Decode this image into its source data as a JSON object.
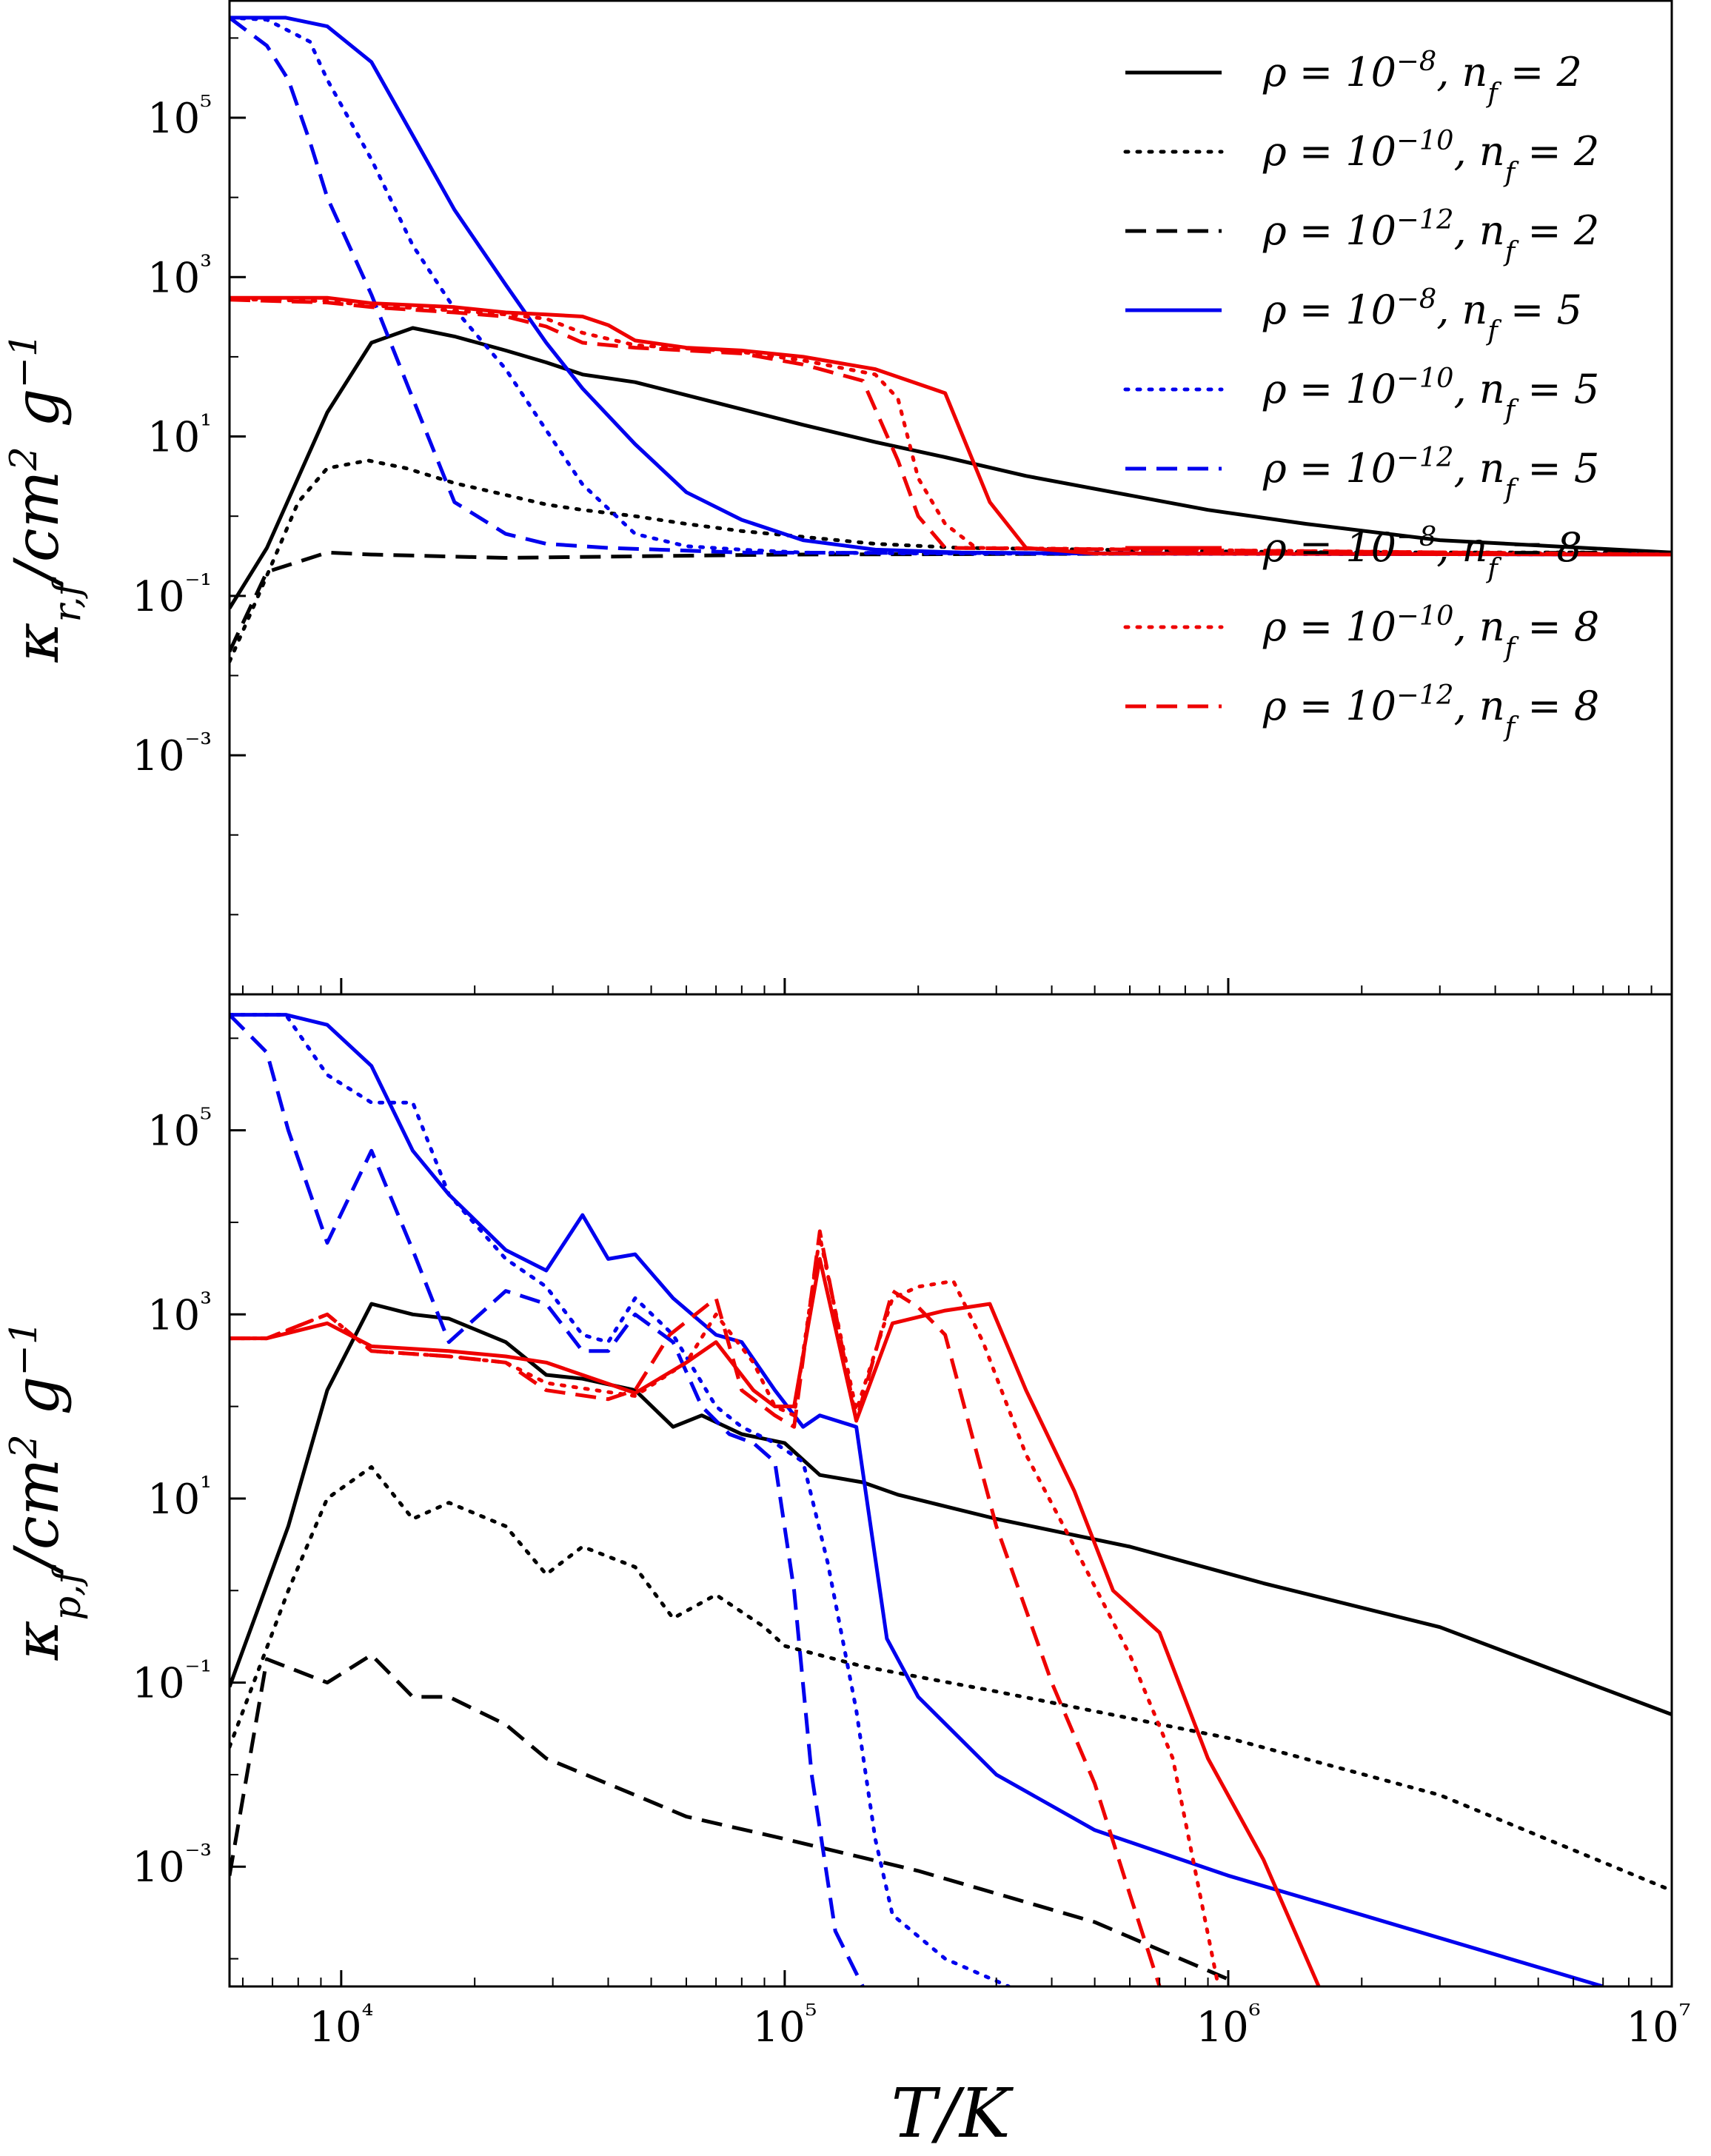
{
  "chart_data": [
    {
      "type": "line",
      "panel": "top",
      "ylabel": "κr,f / cm² g⁻¹",
      "xlabel": "",
      "xscale": "log",
      "yscale": "log",
      "xlim": [
        5600,
        10000000
      ],
      "ylim": [
        1e-06,
        3000000
      ],
      "x_ticks": [
        10000,
        100000,
        1000000,
        10000000
      ],
      "x_tick_labels": [
        "10⁴",
        "10⁵",
        "10⁶",
        "10⁷"
      ],
      "y_ticks": [
        0.001,
        0.1,
        10,
        1000,
        100000
      ],
      "y_tick_labels": [
        "10⁻³",
        "10⁻¹",
        "10¹",
        "10³",
        "10⁵"
      ],
      "grid": false,
      "legend_position": "top-right",
      "series": [
        {
          "name": "ρ = 10⁻⁸, n_f = 2",
          "color": "#000000",
          "dash": "solid",
          "x": [
            5600,
            6800,
            9300,
            11700,
            14500,
            18000,
            23500,
            29000,
            35000,
            46000,
            60000,
            80000,
            110000,
            160000,
            230000,
            350000,
            550000,
            900000,
            1500000,
            3000000,
            10000000
          ],
          "y": [
            0.07,
            0.4,
            20,
            150,
            230,
            180,
            120,
            85,
            60,
            48,
            33,
            22,
            14,
            8.5,
            5.5,
            3.2,
            2,
            1.2,
            0.8,
            0.5,
            0.35
          ]
        },
        {
          "name": "ρ = 10⁻¹⁰, n_f = 2",
          "color": "#000000",
          "dash": "dotted",
          "x": [
            5600,
            6500,
            8000,
            9300,
            11500,
            14000,
            18000,
            23000,
            29000,
            35000,
            46000,
            60000,
            80000,
            110000,
            160000,
            250000,
            500000,
            1000000,
            2000000,
            10000000
          ],
          "y": [
            0.015,
            0.1,
            1.5,
            4,
            5,
            4,
            2.6,
            1.9,
            1.4,
            1.2,
            1.0,
            0.8,
            0.65,
            0.55,
            0.45,
            0.4,
            0.38,
            0.36,
            0.35,
            0.35
          ]
        },
        {
          "name": "ρ = 10⁻¹², n_f = 2",
          "color": "#000000",
          "dash": "dashed",
          "x": [
            5600,
            6800,
            9300,
            11700,
            23500,
            100000,
            1000000,
            10000000
          ],
          "y": [
            0.02,
            0.2,
            0.35,
            0.33,
            0.3,
            0.33,
            0.34,
            0.35
          ]
        },
        {
          "name": "ρ = 10⁻⁸, n_f = 5",
          "color": "#0000ee",
          "dash": "solid",
          "x": [
            5600,
            7500,
            9300,
            11700,
            14500,
            18000,
            23500,
            29000,
            35000,
            46000,
            60000,
            80000,
            110000,
            160000,
            250000,
            500000,
            10000000
          ],
          "y": [
            1800000,
            1800000,
            1400000,
            500000,
            60000,
            7000,
            800,
            150,
            40,
            8,
            2,
            0.9,
            0.5,
            0.38,
            0.35,
            0.34,
            0.33
          ]
        },
        {
          "name": "ρ = 10⁻¹⁰, n_f = 5",
          "color": "#0000ee",
          "dash": "dotted",
          "x": [
            5600,
            6800,
            8500,
            9300,
            11700,
            14500,
            18000,
            23500,
            29000,
            35000,
            46000,
            60000,
            80000,
            110000,
            200000,
            10000000
          ],
          "y": [
            1800000,
            1700000,
            900000,
            300000,
            30000,
            2500,
            400,
            70,
            12,
            2.5,
            0.6,
            0.42,
            0.38,
            0.35,
            0.34,
            0.33
          ]
        },
        {
          "name": "ρ = 10⁻¹², n_f = 5",
          "color": "#0000ee",
          "dash": "dashed",
          "x": [
            5600,
            6800,
            7600,
            8500,
            9300,
            11700,
            14500,
            18000,
            23500,
            29000,
            40000,
            80000,
            10000000
          ],
          "y": [
            1800000,
            800000,
            300000,
            50000,
            10000,
            600,
            30,
            1.5,
            0.6,
            0.45,
            0.4,
            0.35,
            0.33
          ]
        },
        {
          "name": "ρ = 10⁻⁸, n_f = 8",
          "color": "#ee0000",
          "dash": "solid",
          "x": [
            5600,
            9300,
            11700,
            18000,
            23500,
            29000,
            35000,
            40000,
            46000,
            60000,
            80000,
            110000,
            160000,
            230000,
            290000,
            350000,
            500000,
            10000000
          ],
          "y": [
            550,
            550,
            470,
            420,
            360,
            340,
            320,
            250,
            160,
            130,
            120,
            100,
            70,
            35,
            1.5,
            0.4,
            0.34,
            0.33
          ]
        },
        {
          "name": "ρ = 10⁻¹⁰, n_f = 8",
          "color": "#ee0000",
          "dash": "dotted",
          "x": [
            5600,
            9300,
            11700,
            18000,
            23500,
            29000,
            35000,
            46000,
            80000,
            110000,
            160000,
            180000,
            200000,
            230000,
            270000,
            10000000
          ],
          "y": [
            530,
            500,
            440,
            380,
            340,
            300,
            200,
            140,
            115,
            90,
            60,
            30,
            3,
            0.8,
            0.4,
            0.33
          ]
        },
        {
          "name": "ρ = 10⁻¹², n_f = 8",
          "color": "#ee0000",
          "dash": "dashed",
          "x": [
            5600,
            9300,
            11700,
            18000,
            23500,
            29000,
            35000,
            46000,
            80000,
            110000,
            150000,
            180000,
            200000,
            230000,
            10000000
          ],
          "y": [
            520,
            480,
            420,
            360,
            320,
            240,
            150,
            130,
            110,
            80,
            50,
            5,
            1,
            0.4,
            0.33
          ]
        }
      ]
    },
    {
      "type": "line",
      "panel": "bottom",
      "ylabel": "κp,f / cm² g⁻¹",
      "xlabel": "T / K",
      "xscale": "log",
      "yscale": "log",
      "xlim": [
        5600,
        10000000
      ],
      "ylim": [
        5e-05,
        3000000
      ],
      "x_ticks": [
        10000,
        100000,
        1000000,
        10000000
      ],
      "x_tick_labels": [
        "10⁴",
        "10⁵",
        "10⁶",
        "10⁷"
      ],
      "y_ticks": [
        0.001,
        0.1,
        10,
        1000,
        100000
      ],
      "y_tick_labels": [
        "10⁻³",
        "10⁻¹",
        "10¹",
        "10³",
        "10⁵"
      ],
      "grid": false,
      "series": [
        {
          "name": "ρ = 10⁻⁸, n_f = 2",
          "color": "#000000",
          "dash": "solid",
          "x": [
            5600,
            7600,
            9300,
            11700,
            14500,
            17500,
            23500,
            29000,
            35000,
            46000,
            56000,
            65000,
            80000,
            100000,
            120000,
            150000,
            180000,
            300000,
            600000,
            1200000,
            3000000,
            10000000
          ],
          "y": [
            0.09,
            5,
            150,
            1300,
            1000,
            900,
            500,
            220,
            200,
            150,
            60,
            80,
            50,
            40,
            18,
            15,
            11,
            6,
            3,
            1.2,
            0.4,
            0.045
          ]
        },
        {
          "name": "ρ = 10⁻¹⁰, n_f = 2",
          "color": "#000000",
          "dash": "dotted",
          "x": [
            5600,
            7600,
            9300,
            11700,
            14500,
            17500,
            23500,
            29000,
            35000,
            46000,
            56000,
            70000,
            90000,
            100000,
            150000,
            300000,
            1000000,
            3000000,
            10000000
          ],
          "y": [
            0.02,
            1,
            10,
            22,
            6,
            9,
            5,
            1.5,
            3,
            1.8,
            0.5,
            0.9,
            0.4,
            0.25,
            0.15,
            0.08,
            0.025,
            0.006,
            0.00055
          ]
        },
        {
          "name": "ρ = 10⁻¹², n_f = 2",
          "color": "#000000",
          "dash": "dashed",
          "x": [
            5600,
            6800,
            9300,
            11700,
            14500,
            17500,
            23500,
            29000,
            46000,
            60000,
            100000,
            200000,
            500000,
            1000000
          ],
          "y": [
            0.0008,
            0.18,
            0.1,
            0.2,
            0.07,
            0.07,
            0.035,
            0.015,
            0.006,
            0.0035,
            0.002,
            0.0009,
            0.00025,
            6e-05
          ]
        },
        {
          "name": "ρ = 10⁻⁸, n_f = 5",
          "color": "#0000ee",
          "dash": "solid",
          "x": [
            5600,
            7500,
            9300,
            11700,
            14500,
            17500,
            23500,
            29000,
            35000,
            40000,
            46000,
            56000,
            70000,
            80000,
            95000,
            110000,
            120000,
            145000,
            170000,
            200000,
            300000,
            500000,
            1000000,
            2000000,
            7000000
          ],
          "y": [
            1800000,
            1800000,
            1400000,
            500000,
            60000,
            20000,
            5000,
            3000,
            12000,
            4000,
            4500,
            1500,
            600,
            500,
            150,
            60,
            80,
            60,
            0.3,
            0.07,
            0.01,
            0.0025,
            0.0008,
            0.0003,
            5e-05
          ]
        },
        {
          "name": "ρ = 10⁻¹⁰, n_f = 5",
          "color": "#0000ee",
          "dash": "dotted",
          "x": [
            5600,
            7500,
            9300,
            11700,
            14500,
            17500,
            23500,
            29000,
            35000,
            40000,
            46000,
            56000,
            70000,
            80000,
            95000,
            110000,
            125000,
            145000,
            160000,
            175000,
            230000,
            320000
          ],
          "y": [
            1800000,
            1800000,
            400000,
            200000,
            200000,
            20000,
            4000,
            2000,
            600,
            500,
            1500,
            600,
            100,
            60,
            40,
            25,
            2,
            0.05,
            0.002,
            0.0003,
            0.0001,
            5e-05
          ]
        },
        {
          "name": "ρ = 10⁻¹², n_f = 5",
          "color": "#0000ee",
          "dash": "dashed",
          "x": [
            5600,
            6800,
            7600,
            9300,
            11700,
            14500,
            17500,
            23500,
            29000,
            35000,
            40000,
            46000,
            56000,
            65000,
            75000,
            85000,
            95000,
            105000,
            115000,
            130000,
            150000
          ],
          "y": [
            1800000,
            700000,
            100000,
            6000,
            60000,
            5000,
            500,
            1800,
            1300,
            400,
            400,
            1000,
            500,
            100,
            50,
            40,
            25,
            1,
            0.01,
            0.0002,
            5e-05
          ]
        },
        {
          "name": "ρ = 10⁻⁸, n_f = 8",
          "color": "#ee0000",
          "dash": "solid",
          "x": [
            5600,
            6800,
            9300,
            11700,
            17500,
            23500,
            29000,
            46000,
            60000,
            70000,
            85000,
            95000,
            105000,
            120000,
            145000,
            175000,
            230000,
            290000,
            350000,
            450000,
            550000,
            700000,
            900000,
            1200000,
            1600000
          ],
          "y": [
            550,
            550,
            800,
            450,
            400,
            350,
            300,
            140,
            300,
            500,
            150,
            100,
            100,
            4000,
            70,
            800,
            1100,
            1300,
            150,
            12,
            1,
            0.35,
            0.015,
            0.0012,
            5e-05
          ]
        },
        {
          "name": "ρ = 10⁻¹⁰, n_f = 8",
          "color": "#ee0000",
          "dash": "dotted",
          "x": [
            5600,
            6800,
            9300,
            11700,
            17500,
            23500,
            29000,
            46000,
            60000,
            70000,
            85000,
            95000,
            105000,
            120000,
            145000,
            175000,
            200000,
            240000,
            280000,
            350000,
            450000,
            600000,
            750000,
            950000
          ],
          "y": [
            550,
            550,
            1000,
            400,
            350,
            300,
            180,
            130,
            300,
            1000,
            300,
            100,
            80,
            7000,
            90,
            1500,
            2000,
            2300,
            500,
            30,
            3,
            0.2,
            0.015,
            5e-05
          ]
        },
        {
          "name": "ρ = 10⁻¹², n_f = 8",
          "color": "#ee0000",
          "dash": "dashed",
          "x": [
            5600,
            6800,
            9300,
            11700,
            17500,
            23500,
            29000,
            40000,
            46000,
            55000,
            70000,
            80000,
            95000,
            105000,
            120000,
            145000,
            175000,
            200000,
            230000,
            300000,
            400000,
            500000,
            600000,
            700000
          ],
          "y": [
            550,
            550,
            1000,
            400,
            350,
            300,
            150,
            120,
            150,
            600,
            1500,
            150,
            80,
            60,
            8000,
            70,
            1800,
            1200,
            600,
            5,
            0.1,
            0.008,
            0.0005,
            5e-05
          ]
        }
      ]
    }
  ],
  "legend": {
    "entries": [
      {
        "rho": "ρ = 10",
        "rho_exp": "−8",
        "nf": ", n",
        "nf_sub": "f",
        "nf_val": " = 2",
        "color": "#000000",
        "dash": "solid"
      },
      {
        "rho": "ρ = 10",
        "rho_exp": "−10",
        "nf": ", n",
        "nf_sub": "f",
        "nf_val": " = 2",
        "color": "#000000",
        "dash": "dotted"
      },
      {
        "rho": "ρ = 10",
        "rho_exp": "−12",
        "nf": ", n",
        "nf_sub": "f",
        "nf_val": " = 2",
        "color": "#000000",
        "dash": "dashed"
      },
      {
        "rho": "ρ = 10",
        "rho_exp": "−8",
        "nf": ", n",
        "nf_sub": "f",
        "nf_val": " = 5",
        "color": "#0000ee",
        "dash": "solid"
      },
      {
        "rho": "ρ = 10",
        "rho_exp": "−10",
        "nf": ", n",
        "nf_sub": "f",
        "nf_val": " = 5",
        "color": "#0000ee",
        "dash": "dotted"
      },
      {
        "rho": "ρ = 10",
        "rho_exp": "−12",
        "nf": ", n",
        "nf_sub": "f",
        "nf_val": " = 5",
        "color": "#0000ee",
        "dash": "dashed"
      },
      {
        "rho": "ρ = 10",
        "rho_exp": "−8",
        "nf": ", n",
        "nf_sub": "f",
        "nf_val": " = 8",
        "color": "#ee0000",
        "dash": "solid"
      },
      {
        "rho": "ρ = 10",
        "rho_exp": "−10",
        "nf": ", n",
        "nf_sub": "f",
        "nf_val": " = 8",
        "color": "#ee0000",
        "dash": "dotted"
      },
      {
        "rho": "ρ = 10",
        "rho_exp": "−12",
        "nf": ", n",
        "nf_sub": "f",
        "nf_val": " = 8",
        "color": "#ee0000",
        "dash": "dashed"
      }
    ]
  },
  "labels": {
    "top_y": {
      "kappa": "κ",
      "sub": "r,f",
      "unit": "/cm",
      "unit_exp": "2",
      "g": " g",
      "g_exp": "−1"
    },
    "bottom_y": {
      "kappa": "κ",
      "sub": "p,f",
      "unit": "/cm",
      "unit_exp": "2",
      "g": " g",
      "g_exp": "−1"
    },
    "x": "T/K"
  }
}
